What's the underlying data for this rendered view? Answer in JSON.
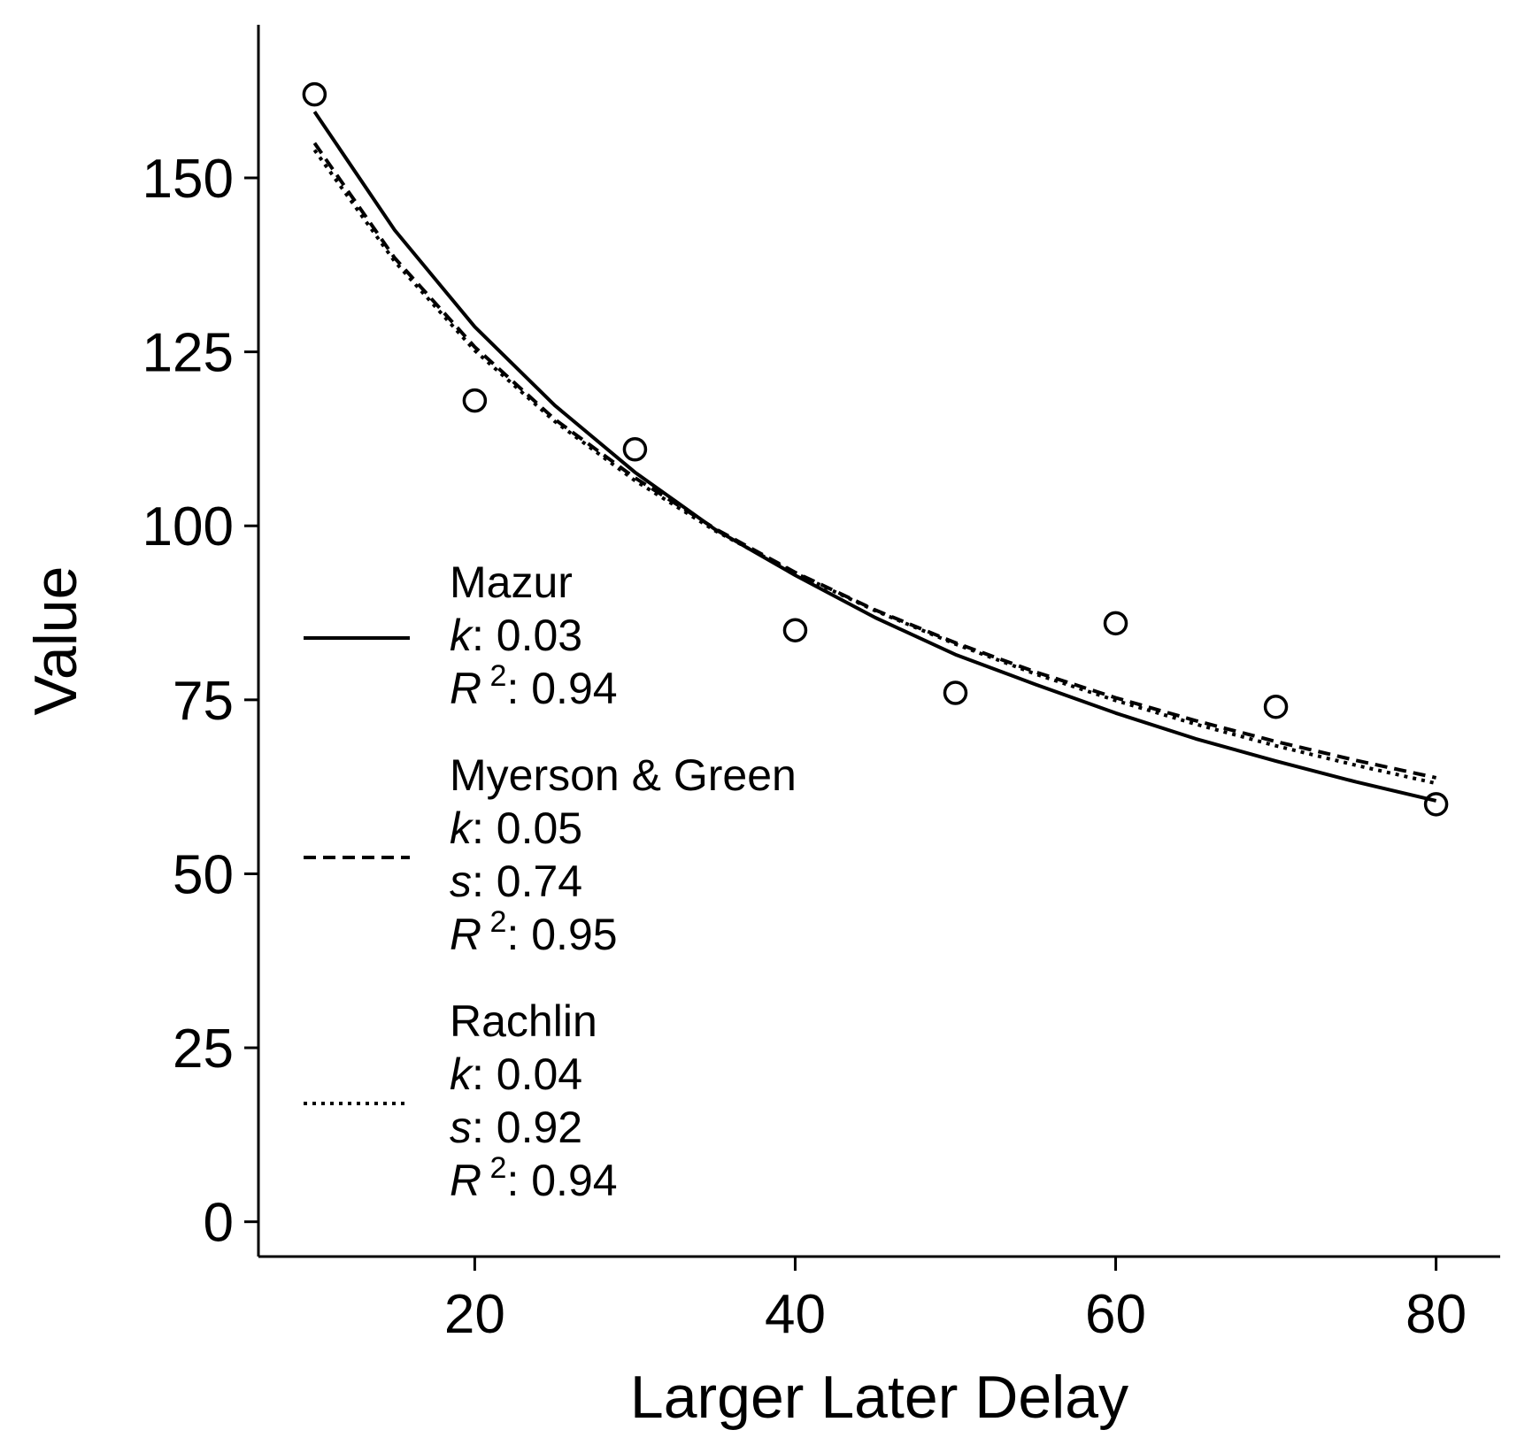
{
  "chart_data": {
    "type": "scatter",
    "title": "",
    "xlabel": "Larger Later Delay",
    "ylabel": "Value",
    "xlim": [
      6.5,
      84
    ],
    "ylim": [
      -5,
      172
    ],
    "xticks": [
      20,
      40,
      60,
      80
    ],
    "xtick_labels": [
      "20",
      "40",
      "60",
      "80"
    ],
    "yticks": [
      0,
      25,
      50,
      75,
      100,
      125,
      150
    ],
    "ytick_labels": [
      "0",
      "25",
      "50",
      "75",
      "100",
      "125",
      "150"
    ],
    "grid": false,
    "legend_placement": "lower-left",
    "points": {
      "x": [
        10,
        20,
        30,
        40,
        50,
        60,
        70,
        80
      ],
      "y": [
        162,
        118,
        111,
        85,
        76,
        86,
        74,
        60
      ]
    },
    "series": [
      {
        "name": "Mazur",
        "style": "solid",
        "params": [
          {
            "symbol": "k",
            "value": "0.03"
          },
          {
            "symbol": "R",
            "sup": "2",
            "value": "0.94"
          }
        ],
        "x": [
          10,
          15,
          20,
          25,
          30,
          35,
          40,
          45,
          50,
          55,
          60,
          65,
          70,
          75,
          80
        ],
        "y": [
          159.5,
          142.5,
          128.6,
          117.3,
          107.7,
          99.5,
          92.9,
          86.8,
          81.5,
          77.2,
          73.1,
          69.4,
          66.2,
          63.2,
          60.5
        ]
      },
      {
        "name": "Myerson & Green",
        "style": "dashed",
        "params": [
          {
            "symbol": "k",
            "value": "0.05"
          },
          {
            "symbol": "s",
            "value": "0.74"
          },
          {
            "symbol": "R",
            "sup": "2",
            "value": "0.95"
          }
        ],
        "x": [
          10,
          15,
          20,
          25,
          30,
          35,
          40,
          45,
          50,
          55,
          60,
          65,
          70,
          75,
          80
        ],
        "y": [
          155,
          138.5,
          125.7,
          115.3,
          106.9,
          99.6,
          93.3,
          87.9,
          83.2,
          79,
          75.3,
          72,
          69,
          66.3,
          63.8
        ]
      },
      {
        "name": "Rachlin",
        "style": "dotted",
        "params": [
          {
            "symbol": "k",
            "value": "0.04"
          },
          {
            "symbol": "s",
            "value": "0.92"
          },
          {
            "symbol": "R",
            "sup": "2",
            "value": "0.94"
          }
        ],
        "x": [
          10,
          15,
          20,
          25,
          30,
          35,
          40,
          45,
          50,
          55,
          60,
          65,
          70,
          75,
          80
        ],
        "y": [
          154,
          138,
          125.2,
          115,
          106.5,
          99.3,
          93.2,
          87.8,
          83,
          78.7,
          74.9,
          71.5,
          68.4,
          65.6,
          63
        ]
      }
    ]
  }
}
